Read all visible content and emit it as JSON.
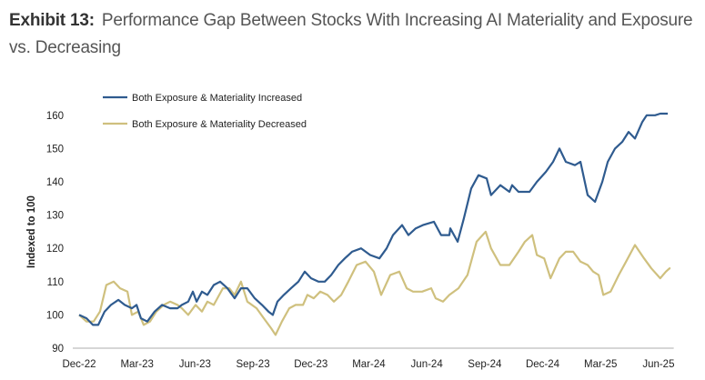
{
  "title": {
    "exhibit": "Exhibit 13:",
    "text": "Performance Gap Between Stocks With Increasing AI Materiality and Exposure vs. Decreasing"
  },
  "chart_data": {
    "type": "line",
    "title": "Performance Gap Between Stocks With Increasing AI Materiality and Exposure vs. Decreasing",
    "xlabel": "",
    "ylabel": "Indexed to 100",
    "ylim": [
      90,
      160
    ],
    "yticks": [
      90,
      100,
      110,
      120,
      130,
      140,
      150,
      160
    ],
    "x_unit": "months since Dec-22",
    "xlim": [
      0,
      30.6
    ],
    "xticks": [
      {
        "label": "Dec-22",
        "x": 0
      },
      {
        "label": "Mar-23",
        "x": 3
      },
      {
        "label": "Jun-23",
        "x": 6
      },
      {
        "label": "Sep-23",
        "x": 9
      },
      {
        "label": "Dec-23",
        "x": 12
      },
      {
        "label": "Mar-24",
        "x": 15
      },
      {
        "label": "Jun-24",
        "x": 18
      },
      {
        "label": "Sep-24",
        "x": 21
      },
      {
        "label": "Dec-24",
        "x": 24
      },
      {
        "label": "Mar-25",
        "x": 27
      },
      {
        "label": "Jun-25",
        "x": 30
      }
    ],
    "grid": false,
    "legend_position": "top-left",
    "series": [
      {
        "name": "Both Exposure & Materiality Increased",
        "color": "#2f5b8f",
        "x": [
          0,
          0.38,
          0.71,
          0.99,
          1.32,
          1.65,
          2.03,
          2.36,
          2.73,
          2.97,
          3.2,
          3.53,
          3.91,
          4.29,
          4.71,
          5.09,
          5.32,
          5.65,
          5.89,
          6.08,
          6.36,
          6.64,
          6.97,
          7.3,
          7.68,
          8.05,
          8.38,
          8.71,
          9.09,
          9.47,
          9.8,
          10.03,
          10.27,
          10.6,
          10.97,
          11.35,
          11.68,
          12.01,
          12.39,
          12.72,
          13.05,
          13.42,
          13.76,
          14.13,
          14.6,
          15.07,
          15.55,
          15.92,
          16.25,
          16.72,
          17.05,
          17.43,
          17.8,
          18.37,
          18.74,
          19.17,
          19.22,
          19.6,
          19.92,
          20.3,
          20.68,
          21.1,
          21.33,
          21.81,
          22.28,
          22.42,
          22.75,
          23.32,
          23.7,
          24.17,
          24.54,
          24.87,
          25.2,
          25.67,
          25.96,
          26.33,
          26.71,
          27.09,
          27.37,
          27.75,
          28.12,
          28.45,
          28.78,
          29.16,
          29.39,
          29.82,
          30.09,
          30.48
        ],
        "values": [
          100,
          99,
          97,
          97,
          101,
          103,
          104.5,
          103,
          102,
          103,
          99,
          98,
          101,
          103,
          102,
          102,
          103,
          104,
          107,
          104,
          107,
          106,
          109,
          110,
          108,
          105,
          108,
          108,
          105,
          103,
          101,
          100,
          104,
          106,
          108,
          110,
          113,
          111,
          110,
          110,
          112,
          115,
          117,
          119,
          120,
          118,
          117,
          120,
          124,
          127,
          124,
          126,
          127,
          128,
          124,
          124,
          126,
          122,
          129,
          138,
          142,
          141,
          136,
          139,
          137,
          139,
          137,
          137,
          140,
          143,
          146,
          150,
          146,
          145,
          146,
          136,
          134,
          140,
          146,
          150,
          152,
          155,
          153,
          158,
          160,
          160,
          160.5,
          160.5
        ]
      },
      {
        "name": "Both Exposure & Materiality Decreased",
        "color": "#cfc07e",
        "x": [
          0,
          0.38,
          0.75,
          1.08,
          1.41,
          1.79,
          2.12,
          2.5,
          2.73,
          3.06,
          3.34,
          3.67,
          4,
          4.38,
          4.71,
          5.09,
          5.32,
          5.65,
          6.03,
          6.36,
          6.64,
          6.97,
          7.44,
          7.77,
          8.05,
          8.38,
          8.71,
          9.19,
          9.56,
          9.94,
          10.17,
          10.5,
          10.88,
          11.21,
          11.59,
          11.82,
          12.15,
          12.48,
          12.86,
          13.19,
          13.57,
          13.94,
          14.37,
          14.83,
          15.26,
          15.64,
          16.11,
          16.58,
          16.96,
          17.29,
          17.76,
          18.23,
          18.46,
          18.84,
          19.17,
          19.64,
          20.11,
          20.58,
          21.05,
          21.33,
          21.81,
          22.28,
          22.75,
          23.08,
          23.46,
          23.7,
          24.08,
          24.41,
          24.87,
          25.2,
          25.58,
          25.96,
          26.33,
          26.62,
          26.9,
          27.14,
          27.52,
          27.94,
          28.32,
          28.78,
          29.25,
          29.63,
          30.09,
          30.38,
          30.57,
          30.62
        ],
        "values": [
          100,
          98,
          98,
          101,
          109,
          110,
          108,
          107,
          100,
          101,
          97,
          98,
          101,
          103,
          104,
          103,
          102,
          100,
          103,
          101,
          104,
          103,
          108,
          108,
          106,
          110,
          104,
          102,
          99,
          96,
          94,
          98,
          102,
          103,
          103,
          106,
          105,
          107,
          106,
          104,
          106,
          110,
          115,
          116,
          113,
          106,
          112,
          113,
          108,
          107,
          107,
          108,
          105,
          104,
          106,
          108,
          112,
          122,
          125,
          120,
          115,
          115,
          119,
          122,
          124,
          118,
          117,
          111,
          117,
          119,
          119,
          116,
          115,
          113,
          112,
          106,
          107,
          112,
          116,
          121,
          117,
          114,
          111,
          113,
          114,
          114
        ]
      }
    ]
  }
}
